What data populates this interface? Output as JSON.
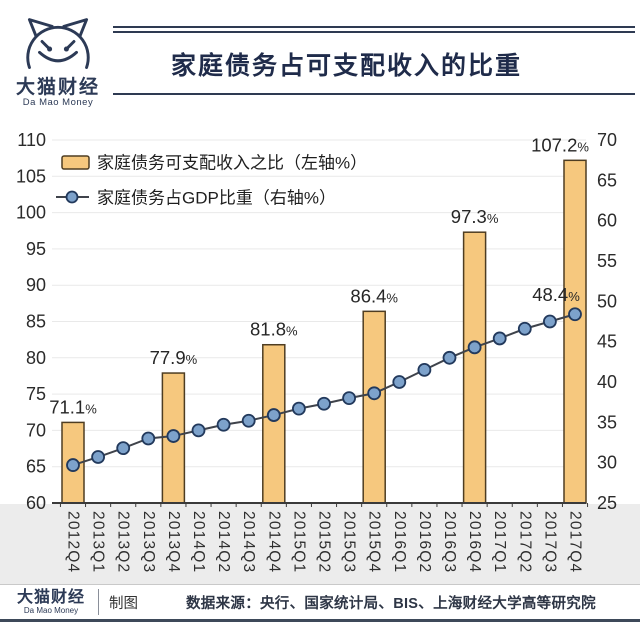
{
  "header": {
    "logo_zh": "大猫财经",
    "logo_en": "Da Mao Money",
    "title": "家庭债务占可支配收入的比重"
  },
  "chart_data": {
    "type": "combo-bar-line",
    "title": "家庭债务占可支配收入的比重",
    "categories": [
      "2012Q4",
      "2013Q1",
      "2013Q2",
      "2013Q3",
      "2013Q4",
      "2014Q1",
      "2014Q2",
      "2014Q3",
      "2014Q4",
      "2015Q1",
      "2015Q2",
      "2015Q3",
      "2015Q4",
      "2016Q1",
      "2016Q2",
      "2016Q3",
      "2016Q4",
      "2017Q1",
      "2017Q2",
      "2017Q3",
      "2017Q4"
    ],
    "legend": [
      {
        "label": "家庭债务可支配收入之比（左轴%）",
        "type": "bar"
      },
      {
        "label": "家庭债务占GDP比重（右轴%）",
        "type": "line"
      }
    ],
    "legend_position": "top-left",
    "grid": true,
    "bars": [
      {
        "category": "2012Q4",
        "index": 0,
        "value": 71.1,
        "label": "71.1%"
      },
      {
        "category": "2013Q4",
        "index": 4,
        "value": 77.9,
        "label": "77.9%"
      },
      {
        "category": "2014Q4",
        "index": 8,
        "value": 81.8,
        "label": "81.8%"
      },
      {
        "category": "2015Q4",
        "index": 12,
        "value": 86.4,
        "label": "86.4%"
      },
      {
        "category": "2016Q4",
        "index": 16,
        "value": 97.3,
        "label": "97.3%"
      },
      {
        "category": "2017Q4",
        "index": 20,
        "value": 107.2,
        "label": "107.2%"
      }
    ],
    "line_series": {
      "name": "家庭债务占GDP比重（右轴%）",
      "axis": "right",
      "values": [
        29.7,
        30.7,
        31.8,
        33.0,
        33.3,
        34.0,
        34.7,
        35.2,
        35.9,
        36.7,
        37.3,
        38.0,
        38.6,
        40.0,
        41.5,
        43.0,
        44.3,
        45.4,
        46.6,
        47.5,
        48.4
      ],
      "end_label": "48.4%"
    },
    "left_axis": {
      "min": 60,
      "max": 110,
      "step": 5,
      "ticks": [
        60,
        65,
        70,
        75,
        80,
        85,
        90,
        95,
        100,
        105,
        110
      ]
    },
    "right_axis": {
      "min": 25,
      "max": 70,
      "step": 5,
      "ticks": [
        25,
        30,
        35,
        40,
        45,
        50,
        55,
        60,
        65,
        70
      ]
    },
    "colors": {
      "bar_fill": "#F6C87E",
      "bar_border": "#4E3D22",
      "line": "#3F434B",
      "marker_fill": "#7DA2CB",
      "marker_border": "#22395C",
      "grid": "#E9E9E9",
      "axis": "#3A3A3A",
      "band": "#ECECEC",
      "accent_navy": "#2C3A56"
    }
  },
  "footer": {
    "logo_zh": "大猫财经",
    "logo_en": "Da Mao Money",
    "credit": "制图",
    "source": "数据来源：央行、国家统计局、BIS、上海财经大学高等研究院"
  }
}
